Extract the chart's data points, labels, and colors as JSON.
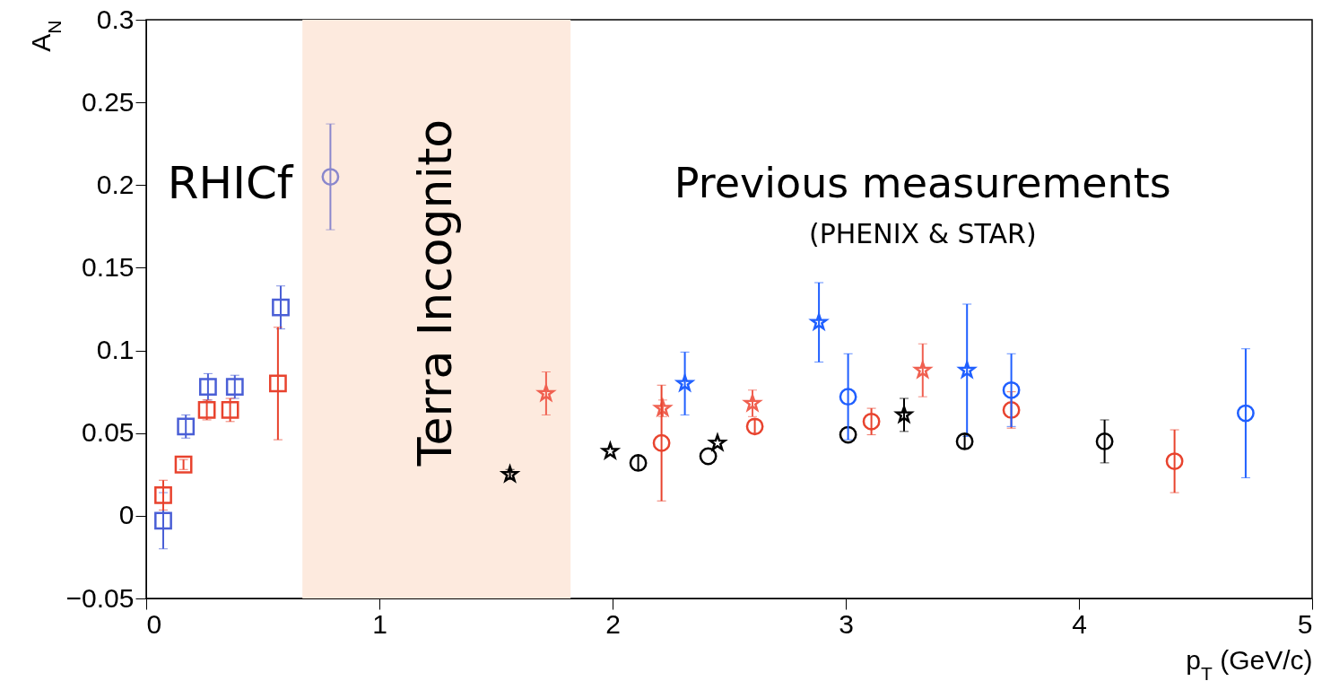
{
  "chart_data": {
    "type": "scatter",
    "xlabel": "p$_{T}$ (GeV/c)",
    "ylabel": "A$_{N}$",
    "xlim": [
      0,
      5
    ],
    "xticks": [
      0,
      1,
      2,
      3,
      4,
      5
    ],
    "ylim": [
      -0.05,
      0.3
    ],
    "yticks": [
      {
        "value": -0.05,
        "label": "−0.05"
      },
      0,
      0.05,
      0.1,
      0.15,
      0.2,
      0.25,
      0.3
    ],
    "grid": false,
    "bands": [
      {
        "axis": "x",
        "from": 0.67,
        "to": 1.82,
        "label": "Terra Incognito",
        "color": "#fdeade"
      }
    ],
    "annotations": [
      "RHICf",
      "Previous measurements",
      "(PHENIX & STAR)"
    ],
    "series": [
      {
        "color": "#4a5fd6",
        "marker": "square",
        "x": [
          0.073,
          0.17,
          0.265,
          0.38,
          0.577
        ],
        "values": [
          -0.003,
          0.054,
          0.078,
          0.078,
          0.126
        ],
        "errors": [
          0.017,
          0.007,
          0.008,
          0.007,
          0.013
        ]
      },
      {
        "color": "#e8432e",
        "marker": "square",
        "x": [
          0.073,
          0.16,
          0.26,
          0.36,
          0.565
        ],
        "values": [
          0.0125,
          0.031,
          0.064,
          0.064,
          0.08
        ],
        "errors": [
          0.009,
          0.003,
          0.006,
          0.007,
          0.034
        ]
      },
      {
        "color": "#8a87cc",
        "marker": "circle",
        "x": [
          0.79
        ],
        "values": [
          0.205
        ],
        "errors": [
          0.032
        ]
      },
      {
        "color": "#000000",
        "marker": "star",
        "x": [
          1.56,
          1.99,
          2.45,
          3.25
        ],
        "values": [
          0.025,
          0.039,
          0.044,
          0.061
        ],
        "errors": [
          0.003,
          null,
          null,
          0.01
        ]
      },
      {
        "color": "#f06050",
        "marker": "star",
        "x": [
          1.715,
          2.215,
          2.6,
          3.33
        ],
        "values": [
          0.074,
          0.065,
          0.068,
          0.088
        ],
        "errors": [
          0.013,
          0.005,
          0.008,
          0.016
        ]
      },
      {
        "color": "#1f5fff",
        "marker": "star",
        "x": [
          2.31,
          2.885,
          3.52
        ],
        "values": [
          0.08,
          0.117,
          0.088
        ],
        "errors": [
          0.019,
          0.024,
          0.04
        ]
      },
      {
        "color": "#000000",
        "marker": "circle",
        "x": [
          2.11,
          2.41,
          3.01,
          3.51,
          4.11
        ],
        "values": [
          0.032,
          0.036,
          0.049,
          0.045,
          0.045
        ],
        "errors": [
          0.004,
          null,
          null,
          0.004,
          0.013
        ]
      },
      {
        "color": "#e8432e",
        "marker": "circle",
        "x": [
          2.21,
          2.61,
          3.11,
          3.71,
          4.41
        ],
        "values": [
          0.044,
          0.054,
          0.057,
          0.064,
          0.033
        ],
        "errors": [
          0.035,
          0.004,
          0.008,
          0.011,
          0.019
        ]
      },
      {
        "color": "#1f5fff",
        "marker": "circle",
        "x": [
          3.01,
          3.71,
          4.715
        ],
        "values": [
          0.072,
          0.076,
          0.062
        ],
        "errors": [
          0.026,
          0.022,
          0.039
        ]
      }
    ]
  }
}
